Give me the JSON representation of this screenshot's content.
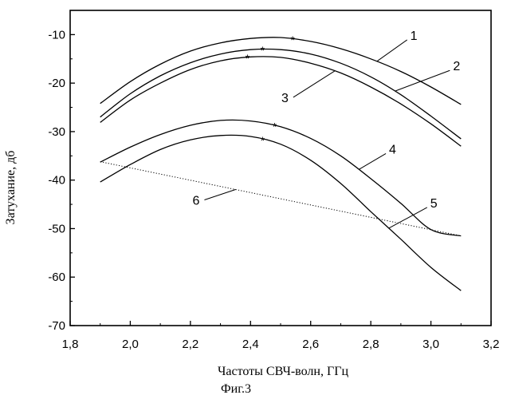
{
  "chart_data": {
    "type": "line",
    "title": "",
    "xlabel": "Частоты СВЧ-волн, ГГц",
    "ylabel": "Затухание, дб",
    "caption": "Фиг.3",
    "xlim": [
      1.8,
      3.2
    ],
    "ylim": [
      -70,
      -5
    ],
    "x_ticks": [
      "1,8",
      "2,0",
      "2,2",
      "2,4",
      "2,6",
      "2,8",
      "3,0",
      "3,2"
    ],
    "y_ticks": [
      "-10",
      "-20",
      "-30",
      "-40",
      "-50",
      "-60",
      "-70"
    ],
    "grid": false,
    "series": [
      {
        "name": "1",
        "style": "solid",
        "marker_x": 2.54,
        "x": [
          1.9,
          2.0,
          2.1,
          2.2,
          2.3,
          2.4,
          2.5,
          2.6,
          2.7,
          2.8,
          2.9,
          3.0,
          3.1
        ],
        "y": [
          -24.2,
          -19.7,
          -16.1,
          -13.4,
          -11.7,
          -10.8,
          -10.6,
          -11.4,
          -12.9,
          -15.0,
          -17.6,
          -20.8,
          -24.4
        ]
      },
      {
        "name": "2",
        "style": "solid",
        "marker_x": 2.44,
        "x": [
          1.9,
          2.0,
          2.1,
          2.2,
          2.3,
          2.4,
          2.5,
          2.6,
          2.7,
          2.8,
          2.9,
          3.0,
          3.1
        ],
        "y": [
          -27.0,
          -22.2,
          -18.5,
          -15.8,
          -14.0,
          -13.1,
          -13.1,
          -14.0,
          -15.9,
          -18.7,
          -22.4,
          -26.8,
          -31.5
        ]
      },
      {
        "name": "3",
        "style": "solid",
        "marker_x": 2.39,
        "x": [
          1.9,
          2.0,
          2.1,
          2.2,
          2.3,
          2.4,
          2.5,
          2.6,
          2.7,
          2.8,
          2.9,
          3.0,
          3.1
        ],
        "y": [
          -28.1,
          -23.5,
          -20.0,
          -17.2,
          -15.4,
          -14.6,
          -14.7,
          -15.9,
          -17.9,
          -20.8,
          -24.3,
          -28.4,
          -33.0
        ]
      },
      {
        "name": "4",
        "style": "solid",
        "marker_x": 2.48,
        "x": [
          1.9,
          2.0,
          2.1,
          2.2,
          2.3,
          2.4,
          2.5,
          2.6,
          2.7,
          2.8,
          2.9,
          3.0,
          3.1
        ],
        "y": [
          -36.3,
          -33.2,
          -30.6,
          -28.7,
          -27.7,
          -27.8,
          -29.0,
          -31.4,
          -35.0,
          -39.7,
          -44.8,
          -50.2,
          -51.5
        ]
      },
      {
        "name": "5",
        "style": "solid",
        "marker_x": 2.44,
        "x": [
          1.9,
          2.0,
          2.1,
          2.2,
          2.3,
          2.4,
          2.5,
          2.6,
          2.7,
          2.8,
          2.9,
          3.0,
          3.1
        ],
        "y": [
          -40.4,
          -36.8,
          -33.7,
          -31.7,
          -30.8,
          -31.0,
          -32.6,
          -35.9,
          -40.7,
          -46.5,
          -52.2,
          -58.0,
          -62.8
        ]
      },
      {
        "name": "6",
        "style": "dotted",
        "x": [
          1.9,
          3.1
        ],
        "y": [
          -36.2,
          -51.5
        ]
      }
    ]
  }
}
